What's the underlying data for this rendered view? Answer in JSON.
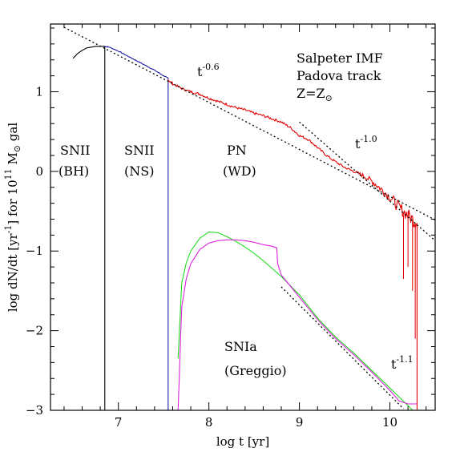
{
  "chart_data": {
    "type": "line",
    "xlabel": "log t [yr]",
    "ylabel_parts": {
      "a": "log dN/dt [yr",
      "a_sup": "-1",
      "b": "] for 10",
      "b_sup": "11",
      "c": " M",
      "c_sub": "⊙",
      "d": " gal"
    },
    "xlim": [
      6.25,
      10.5
    ],
    "ylim": [
      -3.0,
      1.85
    ],
    "xticks": [
      7,
      8,
      9,
      10
    ],
    "yticks": [
      -3,
      -2,
      -1,
      0,
      1
    ],
    "grid": false,
    "labels": {
      "imf": "Salpeter IMF",
      "track": "Padova track",
      "metal": "Z=Z",
      "metal_sub": "⊙",
      "snii_bh_1": "SNII",
      "snii_bh_2": "(BH)",
      "snii_ns_1": "SNII",
      "snii_ns_2": "(NS)",
      "pn_1": "PN",
      "pn_2": "(WD)",
      "snia_1": "SNIa",
      "snia_2": "(Greggio)",
      "t": "t",
      "slope_06": "-0.6",
      "slope_10": "-1.0",
      "slope_11": "-1.1"
    },
    "colors": {
      "snii_bh": "#000000",
      "snii_blue": "#1a1aa8",
      "pn": "#e00000",
      "snia_green": "#22dd22",
      "snia_magenta": "#dd22dd",
      "fit": "#000000"
    },
    "series": [
      {
        "key": "bh",
        "color": "#000000",
        "x": [
          6.5,
          6.55,
          6.6,
          6.65,
          6.7,
          6.75,
          6.8,
          6.85
        ],
        "y": [
          1.42,
          1.48,
          1.52,
          1.55,
          1.56,
          1.57,
          1.57,
          1.57
        ],
        "drop": -3.0
      },
      {
        "key": "ns",
        "color": "#1a1aa8",
        "x": [
          6.85,
          6.9,
          7.0,
          7.1,
          7.2,
          7.3,
          7.4,
          7.5,
          7.55
        ],
        "y": [
          1.57,
          1.56,
          1.51,
          1.45,
          1.39,
          1.33,
          1.27,
          1.2,
          1.17
        ],
        "noise": 0.01,
        "drop": -3.0
      },
      {
        "key": "pn",
        "color": "#e00000",
        "x": [
          7.55,
          7.6,
          7.7,
          7.8,
          7.9,
          8.0,
          8.1,
          8.2,
          8.3,
          8.4,
          8.5,
          8.6,
          8.7,
          8.8,
          8.9,
          9.0,
          9.1,
          9.2,
          9.3,
          9.4,
          9.5,
          9.6,
          9.7,
          9.8,
          9.9,
          10.0,
          10.1,
          10.2,
          10.3
        ],
        "y": [
          1.15,
          1.1,
          1.04,
          1.0,
          0.97,
          0.92,
          0.88,
          0.84,
          0.8,
          0.77,
          0.73,
          0.7,
          0.66,
          0.62,
          0.55,
          0.45,
          0.4,
          0.3,
          0.2,
          0.12,
          0.05,
          0.0,
          -0.05,
          -0.12,
          -0.22,
          -0.32,
          -0.45,
          -0.55,
          -0.65
        ],
        "noise": 0.03,
        "drop": -3.0
      },
      {
        "key": "snia_green",
        "color": "#22dd22",
        "x": [
          7.66,
          7.7,
          7.75,
          7.8,
          7.9,
          8.0,
          8.1,
          8.2,
          8.3,
          8.4,
          8.5,
          8.6,
          8.7,
          8.8,
          9.0,
          9.2,
          9.4,
          9.6,
          9.8,
          10.0,
          10.2,
          10.25
        ],
        "y": [
          -2.35,
          -1.4,
          -1.15,
          -1.0,
          -0.84,
          -0.76,
          -0.77,
          -0.82,
          -0.88,
          -0.95,
          -1.03,
          -1.12,
          -1.22,
          -1.32,
          -1.55,
          -1.84,
          -2.08,
          -2.28,
          -2.5,
          -2.72,
          -2.94,
          -3.0
        ]
      },
      {
        "key": "snia_magenta",
        "color": "#dd22dd",
        "x": [
          7.66,
          7.7,
          7.75,
          7.8,
          7.9,
          8.0,
          8.1,
          8.2,
          8.3,
          8.4,
          8.5,
          8.6,
          8.7,
          8.75,
          8.76,
          8.8,
          9.0,
          9.2,
          9.4,
          9.6,
          9.8,
          10.0,
          10.1,
          10.2,
          10.3
        ],
        "y": [
          -3.0,
          -1.7,
          -1.35,
          -1.16,
          -0.98,
          -0.9,
          -0.87,
          -0.86,
          -0.86,
          -0.87,
          -0.89,
          -0.92,
          -0.94,
          -0.96,
          -1.16,
          -1.3,
          -1.58,
          -1.86,
          -2.1,
          -2.3,
          -2.52,
          -2.75,
          -2.88,
          -2.92,
          -2.92
        ]
      }
    ],
    "fits": [
      {
        "label": "t^-0.6",
        "x": [
          6.4,
          10.5
        ],
        "y": [
          1.81,
          -0.61
        ]
      },
      {
        "label": "t^-1.0",
        "x": [
          9.0,
          10.5
        ],
        "y": [
          0.62,
          -0.87
        ]
      },
      {
        "label": "t^-1.1",
        "x": [
          8.8,
          10.15
        ],
        "y": [
          -1.45,
          -2.98
        ]
      }
    ]
  }
}
